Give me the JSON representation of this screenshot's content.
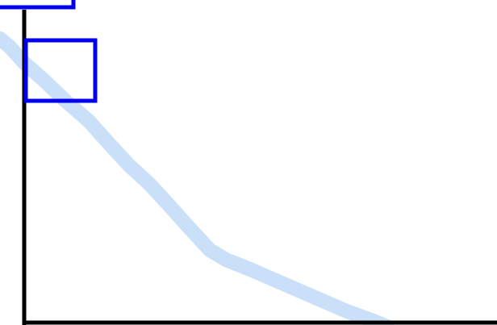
{
  "colors": {
    "background": "#ffffff",
    "axis": "#000000",
    "outline": "#0000ee",
    "stroke": "#c9e0f8"
  },
  "elements": {
    "axis": "vertical-and-horizontal-axis-lines",
    "trace": "light-blue-freehand-stroke",
    "boxes": [
      "blue-outline-rectangle",
      "blue-outline-rectangle"
    ]
  }
}
